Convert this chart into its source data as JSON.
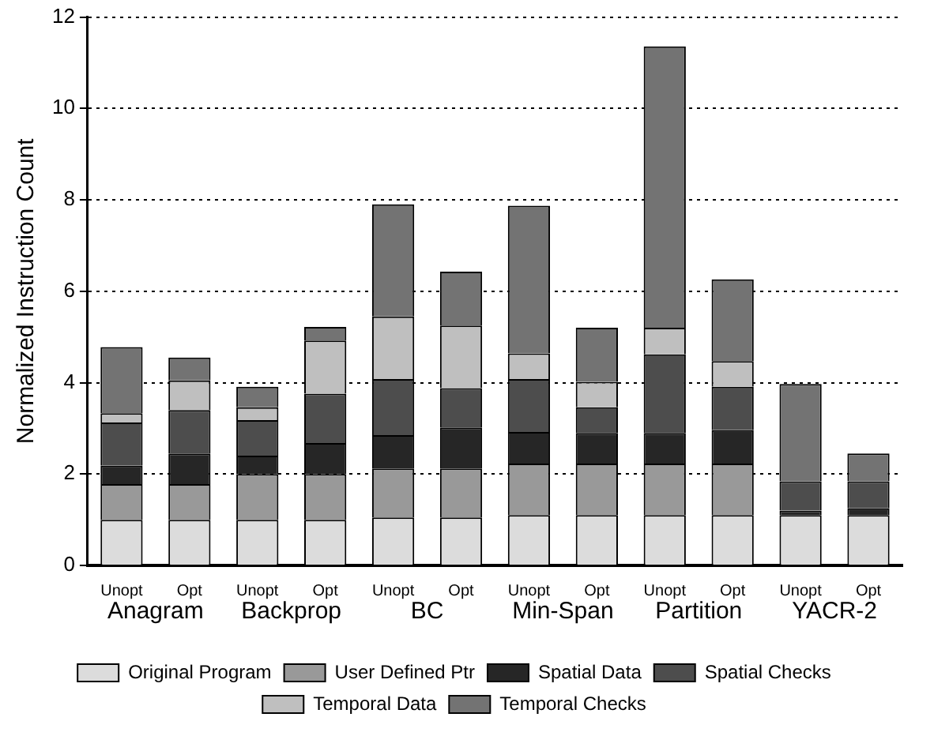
{
  "chart_data": {
    "type": "bar",
    "stacked": true,
    "ylabel": "Normalized Instruction Count",
    "categories": [
      "Unopt",
      "Opt",
      "Unopt",
      "Opt",
      "Unopt",
      "Opt",
      "Unopt",
      "Opt",
      "Unopt",
      "Opt",
      "Unopt",
      "Opt"
    ],
    "annotations": [
      "Anagram",
      "Backprop",
      "BC",
      "Min-Span",
      "Partition",
      "YACR-2"
    ],
    "ylim": [
      0,
      12
    ],
    "yticks": [
      0,
      2,
      4,
      6,
      8,
      10,
      12
    ],
    "grid": "y",
    "legend": "bottom",
    "series": [
      {
        "name": "Original Program",
        "color": "#dcdcdc",
        "values": [
          1.0,
          1.0,
          1.0,
          1.0,
          1.05,
          1.05,
          1.1,
          1.1,
          1.1,
          1.1,
          1.1,
          1.1
        ]
      },
      {
        "name": "User Defined Ptr",
        "color": "#999999",
        "values": [
          0.78,
          0.78,
          1.0,
          1.0,
          1.07,
          1.07,
          1.13,
          1.13,
          1.13,
          1.13,
          0,
          0
        ]
      },
      {
        "name": "Spatial Data",
        "color": "#262626",
        "values": [
          0.4,
          0.67,
          0.4,
          0.68,
          0.73,
          0.9,
          0.69,
          0.67,
          0.67,
          0.73,
          0.1,
          0.15
        ]
      },
      {
        "name": "Spatial Checks",
        "color": "#4d4d4d",
        "values": [
          0.95,
          0.95,
          0.78,
          1.08,
          1.23,
          0.86,
          1.16,
          0.56,
          1.72,
          0.95,
          0.64,
          0.59
        ]
      },
      {
        "name": "Temporal Data",
        "color": "#bfbfbf",
        "values": [
          0.2,
          0.65,
          0.28,
          1.16,
          1.37,
          1.37,
          0.56,
          0.56,
          0.58,
          0.56,
          0,
          0
        ]
      },
      {
        "name": "Temporal Checks",
        "color": "#737373",
        "values": [
          1.45,
          0.5,
          0.45,
          0.3,
          2.45,
          1.18,
          3.23,
          1.18,
          6.16,
          1.79,
          2.13,
          0.61
        ]
      }
    ]
  }
}
